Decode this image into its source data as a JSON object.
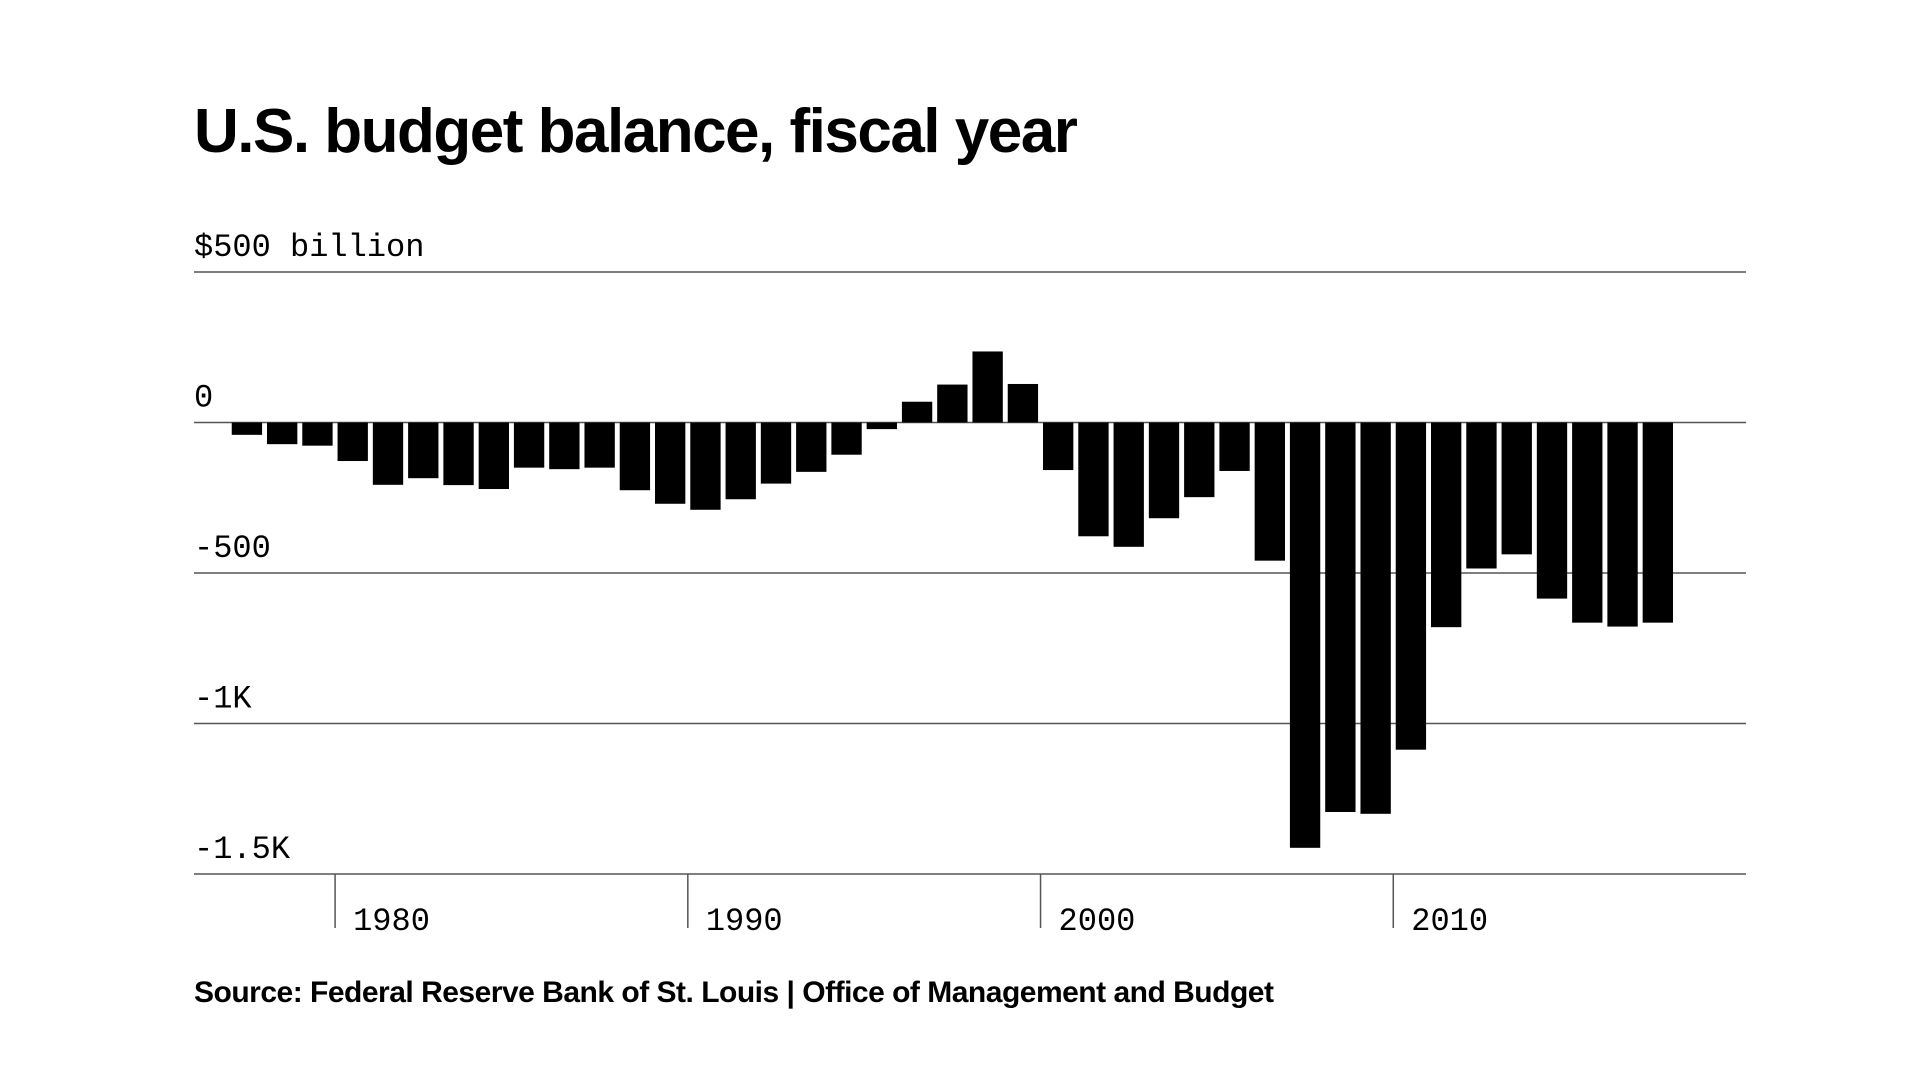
{
  "chart_data": {
    "type": "bar",
    "title": "U.S. budget balance, fiscal year",
    "source": "Source: Federal Reserve Bank of St. Louis | Office of Management and Budget",
    "ylim": [
      -1500,
      500
    ],
    "y_ticks": [
      {
        "value": 500,
        "label": "$500 billion"
      },
      {
        "value": 0,
        "label": "0"
      },
      {
        "value": -500,
        "label": "-500"
      },
      {
        "value": -1000,
        "label": "-1K"
      },
      {
        "value": -1500,
        "label": "-1.5K"
      }
    ],
    "xlim": [
      1975.5,
      2019.5
    ],
    "x_ticks": [
      {
        "value": 1979.5,
        "label": "1980"
      },
      {
        "value": 1989.5,
        "label": "1990"
      },
      {
        "value": 1999.5,
        "label": "2000"
      },
      {
        "value": 2009.5,
        "label": "2010"
      }
    ],
    "grid": true,
    "legend": "none",
    "categories": [
      1977,
      1978,
      1979,
      1980,
      1981,
      1982,
      1983,
      1984,
      1985,
      1986,
      1987,
      1988,
      1989,
      1990,
      1991,
      1992,
      1993,
      1994,
      1995,
      1996,
      1997,
      1998,
      1999,
      2000,
      2001,
      2002,
      2003,
      2004,
      2005,
      2006,
      2007,
      2008,
      2009,
      2010,
      2011,
      2012,
      2013,
      2014,
      2015,
      2016,
      2017
    ],
    "values": [
      -41,
      -72,
      -77,
      -128,
      -207,
      -185,
      -208,
      -221,
      -150,
      -155,
      -150,
      -225,
      -270,
      -290,
      -255,
      -203,
      -164,
      -107,
      -22,
      69,
      126,
      236,
      128,
      -158,
      -378,
      -413,
      -318,
      -248,
      -161,
      -459,
      -1413,
      -1294,
      -1300,
      -1087,
      -680,
      -485,
      -438,
      -585,
      -665,
      -678,
      -665
    ],
    "bar_color": "#000000",
    "grid_color": "#555555"
  }
}
